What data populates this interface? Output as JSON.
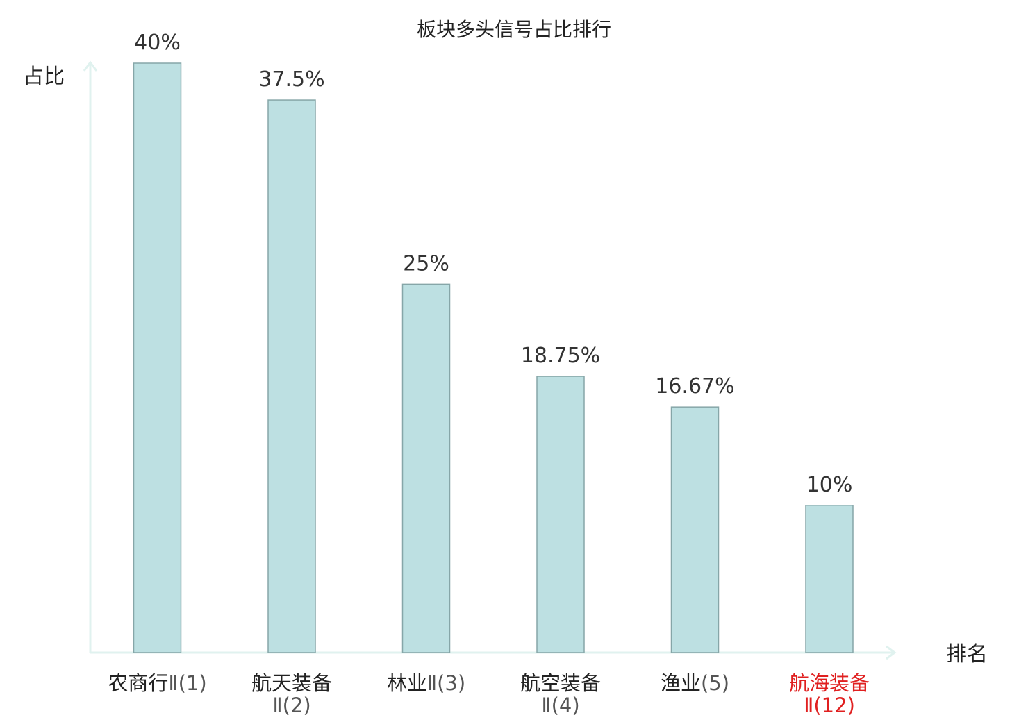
{
  "chart_data": {
    "type": "bar",
    "title": "板块多头信号占比排行",
    "ylabel": "占比",
    "xlabel": "排名",
    "ylim": [
      0,
      40
    ],
    "grid": false,
    "categories": [
      {
        "name": "农商行",
        "suffix": "Ⅱ(1)",
        "wrap": false,
        "highlight": false
      },
      {
        "name": "航天装备",
        "suffix": "Ⅱ(2)",
        "wrap": true,
        "highlight": false
      },
      {
        "name": "林业",
        "suffix": "Ⅱ(3)",
        "wrap": false,
        "highlight": false
      },
      {
        "name": "航空装备",
        "suffix": "Ⅱ(4)",
        "wrap": true,
        "highlight": false
      },
      {
        "name": "渔业",
        "suffix": "(5)",
        "wrap": false,
        "highlight": false
      },
      {
        "name": "航海装备",
        "suffix": "Ⅱ(12)",
        "wrap": true,
        "highlight": true
      }
    ],
    "values": [
      40,
      37.5,
      25,
      18.75,
      16.67,
      10
    ],
    "value_labels": [
      "40%",
      "37.5%",
      "25%",
      "18.75%",
      "16.67%",
      "10%"
    ],
    "colors": {
      "bar_fill": "#bde0e2",
      "bar_stroke": "#86a6a8",
      "axis": "#e0f2ef",
      "text": "#222222",
      "value_text": "#333333",
      "suffix_text": "#555555",
      "highlight": "#e02020"
    }
  }
}
